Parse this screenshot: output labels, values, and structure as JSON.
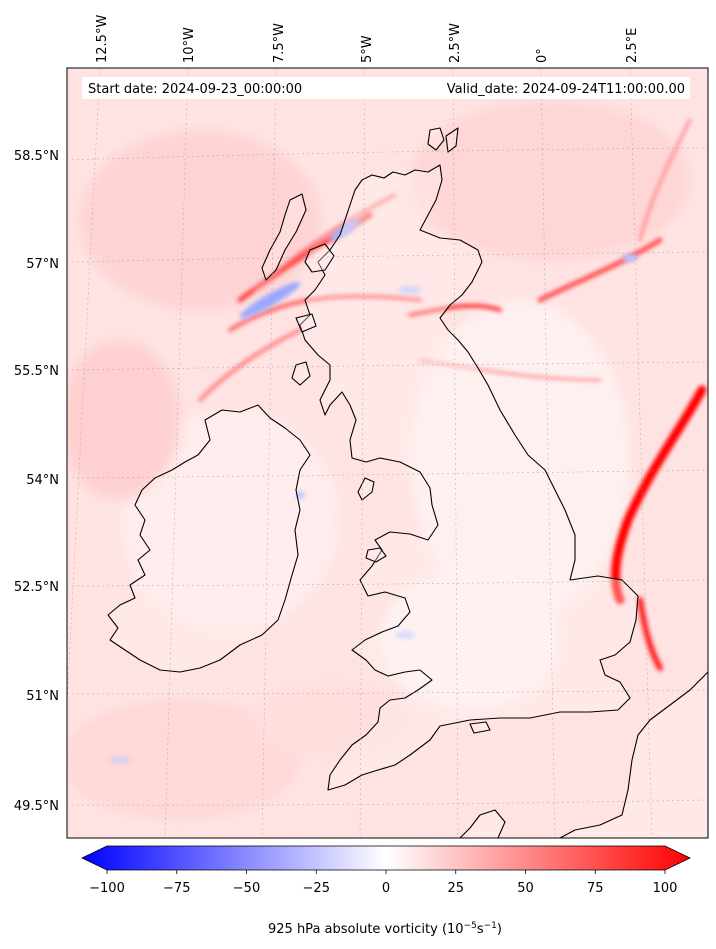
{
  "header": {
    "start_date": "Start date: 2024-09-23_00:00:00",
    "valid_date": "Valid_date: 2024-09-24T11:00:00.00"
  },
  "axes": {
    "lon_labels": [
      "12.5°W",
      "10°W",
      "7.5°W",
      "5°W",
      "2.5°W",
      "0°",
      "2.5°E"
    ],
    "lat_labels": [
      "58.5°N",
      "57°N",
      "55.5°N",
      "54°N",
      "52.5°N",
      "51°N",
      "49.5°N"
    ]
  },
  "colorbar": {
    "min": -100,
    "max": 100,
    "ticks": [
      "−100",
      "−75",
      "−50",
      "−25",
      "0",
      "25",
      "50",
      "75",
      "100"
    ],
    "label": "925 hPa absolute vorticity (10",
    "label_exp1": "−5",
    "label_mid": "s",
    "label_exp2": "−1",
    "label_end": ")",
    "colors": {
      "low": "#0000ff",
      "mid": "#ffffff",
      "high": "#ff0000"
    }
  },
  "map": {
    "background_color": "#ffe6e6",
    "coastline_color": "#000000"
  }
}
